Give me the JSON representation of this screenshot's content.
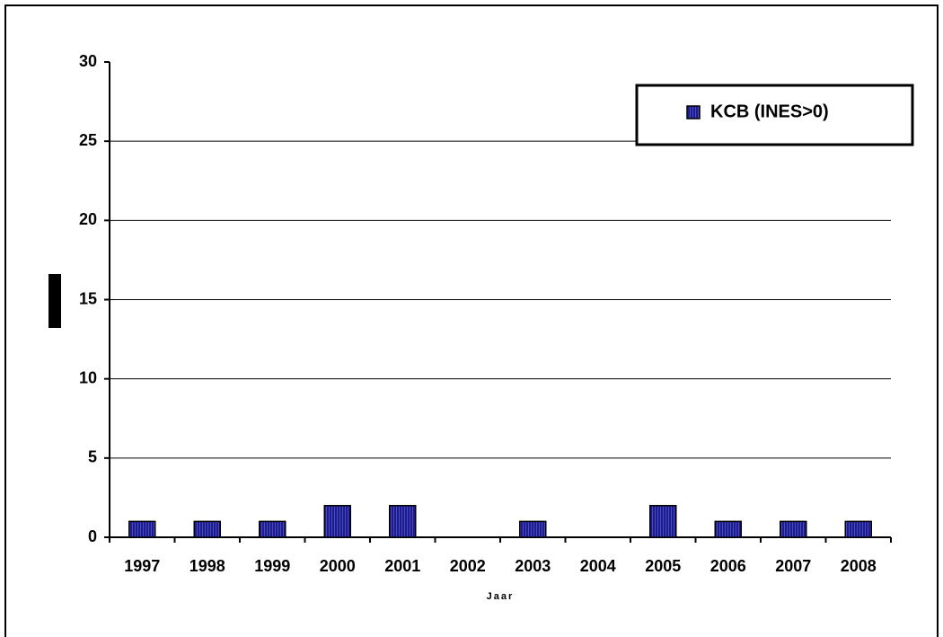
{
  "chart_data": {
    "type": "bar",
    "x_label": "Jaar",
    "categories": [
      "1997",
      "1998",
      "1999",
      "2000",
      "2001",
      "2002",
      "2003",
      "2004",
      "2005",
      "2006",
      "2007",
      "2008"
    ],
    "series": [
      {
        "name": "KCB (INES>0)",
        "color": "#1c1c8c",
        "values": [
          1,
          1,
          1,
          2,
          2,
          0,
          1,
          0,
          2,
          1,
          1,
          1
        ]
      }
    ],
    "ylim": [
      0,
      30
    ],
    "yticks": [
      0,
      5,
      10,
      15,
      20,
      25,
      30
    ],
    "grid": true,
    "legend": "top-right"
  }
}
